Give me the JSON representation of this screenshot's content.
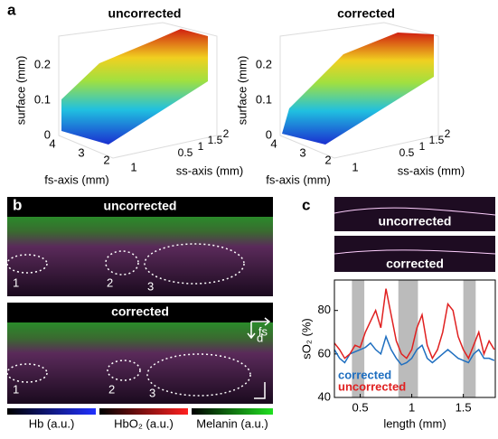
{
  "panel_a": {
    "label": "a",
    "plots": [
      {
        "title": "uncorrected",
        "zlabel": "surface (mm)",
        "zticks": [
          0,
          0.1,
          0.2
        ],
        "fs_label": "fs-axis (mm)",
        "fs_ticks": [
          4,
          3,
          2,
          1
        ],
        "ss_label": "ss-axis (mm)",
        "ss_ticks": [
          0.5,
          1,
          1.5,
          2
        ]
      },
      {
        "title": "corrected",
        "zlabel": "surface (mm)",
        "zticks": [
          0,
          0.1,
          0.2
        ],
        "fs_label": "fs-axis (mm)",
        "fs_ticks": [
          4,
          3,
          2,
          1
        ],
        "ss_label": "ss-axis (mm)",
        "ss_ticks": [
          0.5,
          1,
          1.5,
          2
        ]
      }
    ]
  },
  "panel_b": {
    "label": "b",
    "images": [
      {
        "title": "uncorrected",
        "regions": [
          "1",
          "2",
          "3"
        ]
      },
      {
        "title": "corrected",
        "regions": [
          "1",
          "2",
          "3"
        ]
      }
    ],
    "axes": [
      "fs",
      "d"
    ],
    "colorbars": [
      "Hb (a.u.)",
      "HbO₂ (a.u.)",
      "Melanin (a.u.)"
    ]
  },
  "panel_c": {
    "label": "c",
    "images": [
      "uncorrected",
      "corrected"
    ]
  },
  "chart_data": {
    "type": "line",
    "xlabel": "length (mm)",
    "ylabel": "sO₂ (%)",
    "x": [
      0.25,
      0.3,
      0.35,
      0.4,
      0.45,
      0.5,
      0.55,
      0.6,
      0.65,
      0.7,
      0.75,
      0.8,
      0.85,
      0.9,
      0.95,
      1,
      1.05,
      1.1,
      1.15,
      1.2,
      1.25,
      1.3,
      1.35,
      1.4,
      1.45,
      1.5,
      1.55,
      1.6,
      1.65,
      1.7,
      1.75,
      1.8
    ],
    "series": [
      {
        "name": "corrected",
        "color": "#1f6fc0",
        "values": [
          62,
          58,
          56,
          60,
          61,
          62,
          63,
          65,
          62,
          60,
          68,
          62,
          58,
          55,
          56,
          58,
          62,
          64,
          58,
          56,
          58,
          60,
          62,
          60,
          58,
          57,
          56,
          60,
          62,
          58,
          58,
          57
        ]
      },
      {
        "name": "uncorrected",
        "color": "#e02020",
        "values": [
          65,
          62,
          58,
          60,
          64,
          63,
          70,
          75,
          80,
          72,
          90,
          78,
          66,
          60,
          58,
          62,
          72,
          78,
          64,
          58,
          62,
          70,
          83,
          80,
          68,
          62,
          58,
          64,
          70,
          60,
          66,
          62
        ]
      }
    ],
    "bands": [
      [
        0.42,
        0.54
      ],
      [
        0.87,
        1.06
      ],
      [
        1.5,
        1.62
      ]
    ],
    "xlim": [
      0.25,
      1.81
    ],
    "ylim": [
      40,
      94
    ],
    "xticks": [
      0.5,
      1,
      1.5
    ],
    "yticks": [
      40,
      60,
      80
    ]
  }
}
